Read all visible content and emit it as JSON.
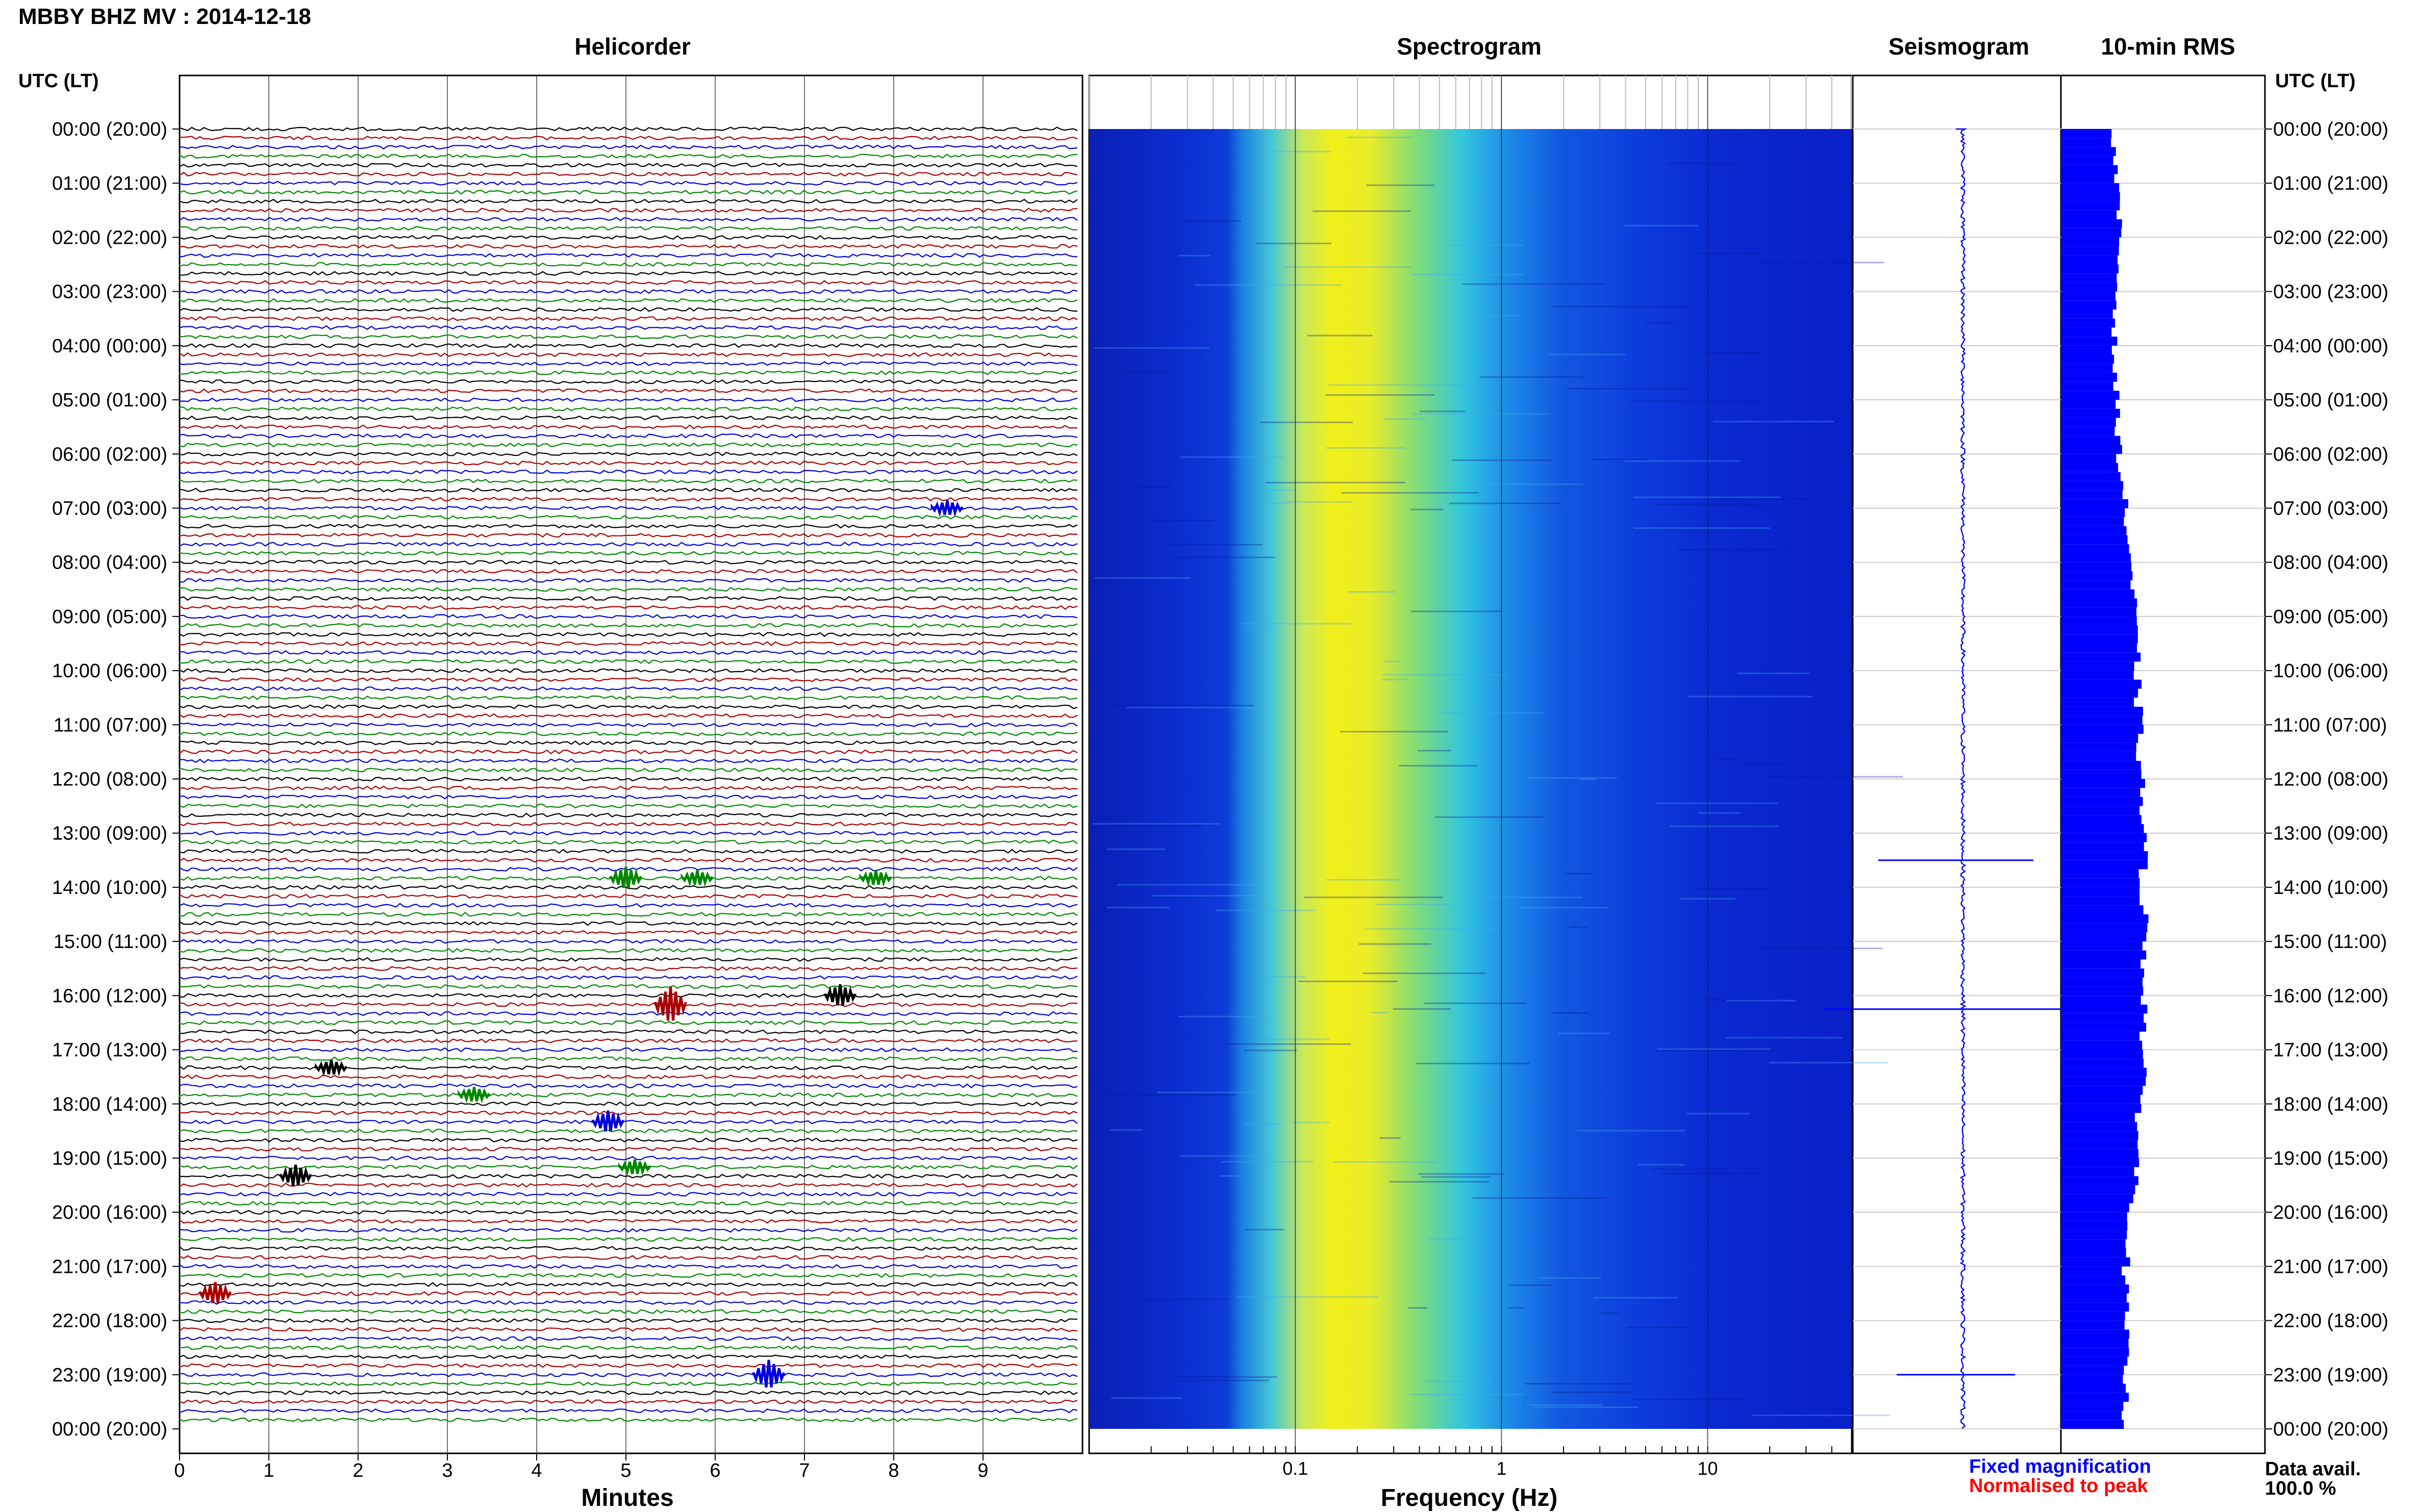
{
  "header": {
    "title": "MBBY BHZ MV : 2014-12-18",
    "utc_left": "UTC (LT)",
    "utc_right": "UTC (LT)"
  },
  "panels": {
    "helicorder": "Helicorder",
    "spectrogram": "Spectrogram",
    "seismogram": "Seismogram",
    "rms": "10-min RMS"
  },
  "axes": {
    "minutes_label": "Minutes",
    "frequency_label": "Frequency (Hz)"
  },
  "legend": {
    "fixed": "Fixed magnification",
    "normalised": "Normalised to peak",
    "fixed_color": "#0000ff",
    "normalised_color": "#ff0000"
  },
  "data_avail": {
    "label": "Data avail.",
    "value": "100.0 %"
  },
  "chart_data": {
    "type": "heatmap",
    "hour_labels": [
      "00:00 (20:00)",
      "01:00 (21:00)",
      "02:00 (22:00)",
      "03:00 (23:00)",
      "04:00 (00:00)",
      "05:00 (01:00)",
      "06:00 (02:00)",
      "07:00 (03:00)",
      "08:00 (04:00)",
      "09:00 (05:00)",
      "10:00 (06:00)",
      "11:00 (07:00)",
      "12:00 (08:00)",
      "13:00 (09:00)",
      "14:00 (10:00)",
      "15:00 (11:00)",
      "16:00 (12:00)",
      "17:00 (13:00)",
      "18:00 (14:00)",
      "19:00 (15:00)",
      "20:00 (16:00)",
      "21:00 (17:00)",
      "22:00 (18:00)",
      "23:00 (19:00)",
      "00:00 (20:00)"
    ],
    "minutes_ticks": [
      "0",
      "1",
      "2",
      "3",
      "4",
      "5",
      "6",
      "7",
      "8",
      "9"
    ],
    "minutes_range": [
      0,
      10
    ],
    "frequency_ticks": [
      {
        "label": "0.1",
        "value": 0.1
      },
      {
        "label": "1",
        "value": 1
      },
      {
        "label": "10",
        "value": 10
      }
    ],
    "frequency_range": [
      0.01,
      50
    ],
    "frequency_scale": "log",
    "trace_colors": [
      "#000000",
      "#aa0000",
      "#0000dd",
      "#008800"
    ],
    "helicorder_events": [
      {
        "time_h": 7.0,
        "minute": 8.6,
        "amp": 1
      },
      {
        "time_h": 13.83,
        "minute": 5.0,
        "amp": 2
      },
      {
        "time_h": 13.83,
        "minute": 5.8,
        "amp": 1
      },
      {
        "time_h": 13.83,
        "minute": 7.8,
        "amp": 1
      },
      {
        "time_h": 16.0,
        "minute": 7.4,
        "amp": 2
      },
      {
        "time_h": 16.17,
        "minute": 5.5,
        "amp": 4
      },
      {
        "time_h": 17.33,
        "minute": 1.7,
        "amp": 1
      },
      {
        "time_h": 17.83,
        "minute": 3.3,
        "amp": 1
      },
      {
        "time_h": 18.33,
        "minute": 4.8,
        "amp": 2
      },
      {
        "time_h": 19.17,
        "minute": 5.1,
        "amp": 1
      },
      {
        "time_h": 19.33,
        "minute": 1.3,
        "amp": 2
      },
      {
        "time_h": 21.5,
        "minute": 0.4,
        "amp": 2
      },
      {
        "time_h": 23.0,
        "minute": 6.6,
        "amp": 3
      }
    ],
    "seismogram_spikes": [
      {
        "time_h": 13.5,
        "amp": 0.55
      },
      {
        "time_h": 16.25,
        "amp": 1.0
      },
      {
        "time_h": 23.0,
        "amp": 0.4
      }
    ],
    "rms_profile": [
      {
        "time_h": 0,
        "value": 0.45
      },
      {
        "time_h": 2,
        "value": 0.5
      },
      {
        "time_h": 4,
        "value": 0.45
      },
      {
        "time_h": 6,
        "value": 0.5
      },
      {
        "time_h": 8,
        "value": 0.6
      },
      {
        "time_h": 10,
        "value": 0.65
      },
      {
        "time_h": 13,
        "value": 0.7
      },
      {
        "time_h": 16,
        "value": 0.72
      },
      {
        "time_h": 19,
        "value": 0.65
      },
      {
        "time_h": 21,
        "value": 0.55
      },
      {
        "time_h": 24,
        "value": 0.55
      }
    ]
  }
}
